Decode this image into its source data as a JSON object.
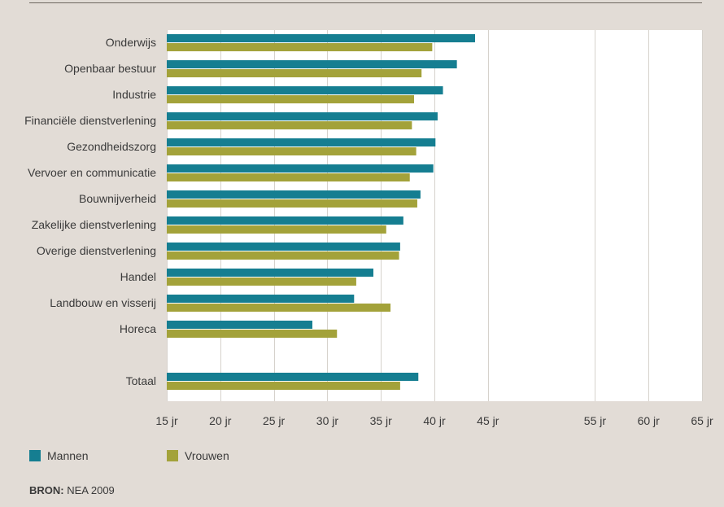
{
  "colors": {
    "background": "#e2dcd6",
    "plot_bg": "#ffffff",
    "mannen": "#157e91",
    "vrouwen": "#a3a23a"
  },
  "legend": {
    "mannen_label": "Mannen",
    "vrouwen_label": "Vrouwen"
  },
  "source": {
    "label": "BRON:",
    "text": "NEA 2009"
  },
  "chart_data": {
    "type": "bar",
    "orientation": "horizontal",
    "categories": [
      "Onderwijs",
      "Openbaar bestuur",
      "Industrie",
      "Financiële dienstverlening",
      "Gezondheidszorg",
      "Vervoer en communicatie",
      "Bouwnijverheid",
      "Zakelijke dienstverlening",
      "Overige dienstverlening",
      "Handel",
      "Landbouw en visserij",
      "Horeca",
      "",
      "Totaal"
    ],
    "series": [
      {
        "name": "Mannen",
        "values": [
          43.8,
          42.1,
          40.8,
          40.3,
          40.1,
          39.9,
          38.7,
          37.1,
          36.8,
          34.3,
          32.5,
          28.6,
          null,
          38.5
        ]
      },
      {
        "name": "Vrouwen",
        "values": [
          39.8,
          38.8,
          38.1,
          37.9,
          38.3,
          37.7,
          38.4,
          35.5,
          36.7,
          32.7,
          35.9,
          30.9,
          null,
          36.8
        ]
      }
    ],
    "xlim": [
      15,
      65
    ],
    "xticks": [
      15,
      20,
      25,
      30,
      35,
      40,
      45,
      55,
      60,
      65
    ],
    "xtick_labels": [
      "15 jr",
      "20 jr",
      "25 jr",
      "30 jr",
      "35 jr",
      "40 jr",
      "45 jr",
      "55 jr",
      "60 jr",
      "65 jr"
    ],
    "grid": true,
    "legend_position": "bottom-left"
  }
}
